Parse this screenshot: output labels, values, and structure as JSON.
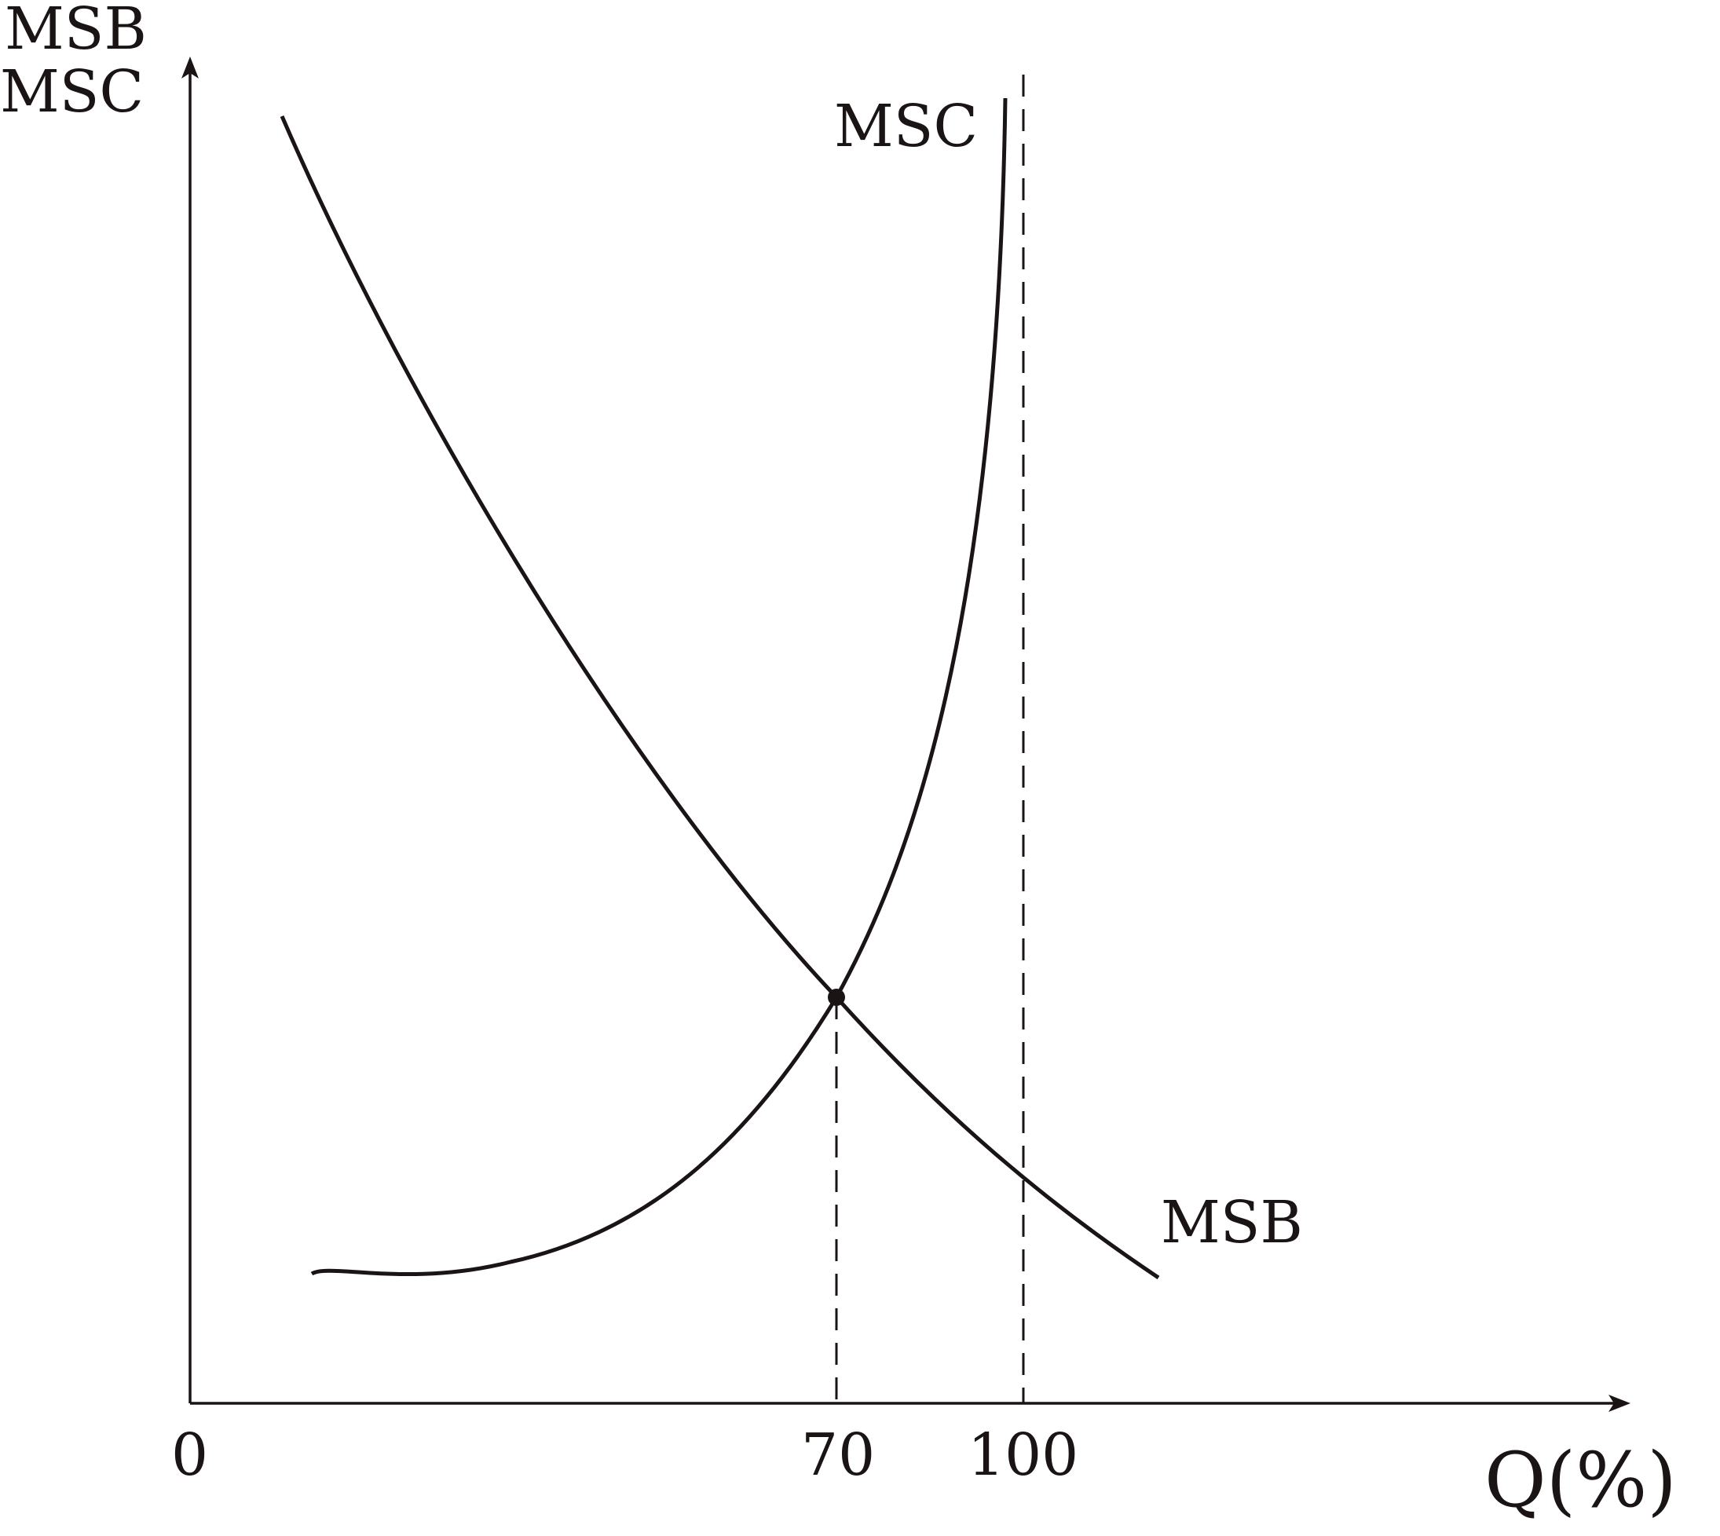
{
  "chart_data": {
    "type": "line",
    "ylabel_lines": [
      "MSB",
      "MSC"
    ],
    "xlabel": "Q(%)",
    "origin_label": "0",
    "x_ticks": [
      {
        "value": 70,
        "label": "70"
      },
      {
        "value": 100,
        "label": "100"
      }
    ],
    "xlim": [
      0,
      232
    ],
    "series": [
      {
        "name": "MSC",
        "points": [
          [
            20,
            10
          ],
          [
            30,
            10.3
          ],
          [
            40,
            12
          ],
          [
            50,
            15.5
          ],
          [
            60,
            21.5
          ],
          [
            70,
            31.5
          ],
          [
            80,
            47.5
          ],
          [
            90,
            72
          ],
          [
            95,
            90
          ],
          [
            98,
            100
          ]
        ]
      },
      {
        "name": "MSB",
        "points": [
          [
            15,
            99
          ],
          [
            25,
            88.5
          ],
          [
            40,
            72
          ],
          [
            55,
            54.5
          ],
          [
            70,
            31.5
          ],
          [
            85,
            19.2
          ],
          [
            100,
            17.5
          ],
          [
            115,
            9.8
          ],
          [
            116,
            10
          ]
        ]
      }
    ],
    "annotations": [
      {
        "type": "intersection-point",
        "x": 70,
        "y": 31.5
      },
      {
        "type": "dashed-vertical",
        "x": 70
      },
      {
        "type": "dashed-vertical",
        "x": 100
      }
    ],
    "colors": {
      "ink": "#1a1414",
      "background": "#ffffff"
    }
  }
}
